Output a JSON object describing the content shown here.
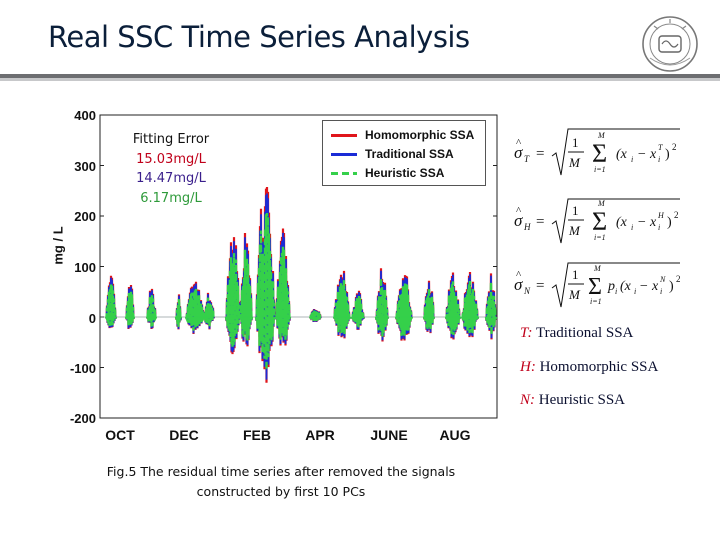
{
  "slide": {
    "title": "Real SSC Time Series Analysis"
  },
  "fit_error": {
    "heading": "Fitting Error",
    "values": [
      {
        "text": "15.03mg/L",
        "color": "#c0001a"
      },
      {
        "text": "14.47mg/L",
        "color": "#3a1f8c"
      },
      {
        "text": "6.17mg/L",
        "color": "#2e9a3a"
      }
    ]
  },
  "definitions": [
    {
      "symbol": "T:",
      "text": " Traditional SSA"
    },
    {
      "symbol": "H:",
      "text": " Homomorphic SSA"
    },
    {
      "symbol": "N:",
      "text": " Heuristic SSA"
    }
  ],
  "caption": {
    "line1": "Fig.5 The residual time series after removed the signals",
    "line2": "constructed by first 10 PCs"
  },
  "colors": {
    "homomorphic": "#e0151b",
    "traditional": "#1a2bd6",
    "heuristic": "#35d04a"
  },
  "chart_data": {
    "type": "line",
    "title": "",
    "xlabel": "",
    "ylabel": "mg / L",
    "ylim": [
      -200,
      400
    ],
    "yticks": [
      "400",
      "300",
      "200",
      "100",
      "0",
      "-100",
      "-200"
    ],
    "xticks": [
      "OCT",
      "DEC",
      "FEB",
      "APR",
      "JUNE",
      "AUG"
    ],
    "legend_position": "top-right",
    "series": [
      {
        "name": "Homomorphic SSA",
        "color": "#e0151b",
        "line": "solid"
      },
      {
        "name": "Traditional SSA",
        "color": "#1a2bd6",
        "line": "solid"
      },
      {
        "name": "Heuristic SSA",
        "color": "#35d04a",
        "line": "dashed"
      }
    ],
    "peaks_approx": [
      {
        "month": "OCT",
        "max": 85,
        "min": -30
      },
      {
        "month": "NOV",
        "max": 60,
        "min": -25
      },
      {
        "month": "DEC",
        "max": 80,
        "min": -35
      },
      {
        "month": "JAN",
        "max": 190,
        "min": -75
      },
      {
        "month": "FEB",
        "max": 300,
        "min": -135
      },
      {
        "month": "MAR",
        "max": 55,
        "min": -30
      },
      {
        "month": "APR",
        "max": 25,
        "min": -15
      },
      {
        "month": "MAY",
        "max": 100,
        "min": -50
      },
      {
        "month": "JUNE",
        "max": 100,
        "min": -55
      },
      {
        "month": "JULY",
        "max": 100,
        "min": -45
      },
      {
        "month": "AUG",
        "max": 90,
        "min": -50
      }
    ]
  }
}
